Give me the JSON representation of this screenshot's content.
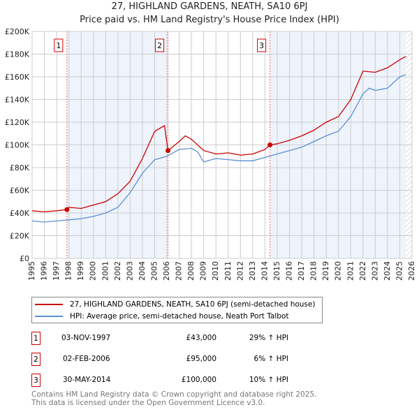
{
  "chart_data": {
    "type": "line",
    "title": "27, HIGHLAND GARDENS, NEATH, SA10 6PJ",
    "subtitle": "Price paid vs. HM Land Registry's House Price Index (HPI)",
    "xlim": [
      1995,
      2026
    ],
    "ylim": [
      0,
      200000
    ],
    "x_ticks": [
      "1995",
      "1996",
      "1997",
      "1998",
      "1999",
      "2000",
      "2001",
      "2002",
      "2003",
      "2004",
      "2005",
      "2006",
      "2007",
      "2008",
      "2009",
      "2010",
      "2011",
      "2012",
      "2013",
      "2014",
      "2015",
      "2016",
      "2017",
      "2018",
      "2019",
      "2020",
      "2021",
      "2022",
      "2023",
      "2024",
      "2025",
      "2026"
    ],
    "y_ticks": [
      {
        "v": 0,
        "l": "£0"
      },
      {
        "v": 20000,
        "l": "£20K"
      },
      {
        "v": 40000,
        "l": "£40K"
      },
      {
        "v": 60000,
        "l": "£60K"
      },
      {
        "v": 80000,
        "l": "£80K"
      },
      {
        "v": 100000,
        "l": "£100K"
      },
      {
        "v": 120000,
        "l": "£120K"
      },
      {
        "v": 140000,
        "l": "£140K"
      },
      {
        "v": 160000,
        "l": "£160K"
      },
      {
        "v": 180000,
        "l": "£180K"
      },
      {
        "v": 200000,
        "l": "£200K"
      }
    ],
    "grid": true,
    "series": [
      {
        "name": "27, HIGHLAND GARDENS, NEATH, SA10 6PJ (semi-detached house)",
        "color": "#cc0000",
        "x": [
          1995,
          1996,
          1997,
          1997.84,
          1998,
          1999,
          2000,
          2001,
          2002,
          2003,
          2004,
          2005,
          2005.8,
          2006.09,
          2007,
          2007.5,
          2008,
          2009,
          2010,
          2011,
          2012,
          2013,
          2014,
          2014.41,
          2015,
          2016,
          2017,
          2018,
          2019,
          2020,
          2021,
          2022,
          2023,
          2024,
          2025,
          2025.5
        ],
        "y": [
          42000,
          41000,
          42000,
          43000,
          45000,
          44000,
          47000,
          50000,
          57000,
          68000,
          88000,
          112000,
          117000,
          95000,
          103000,
          108000,
          105000,
          95000,
          92000,
          93000,
          91000,
          92000,
          96000,
          100000,
          101000,
          104000,
          108000,
          113000,
          120000,
          125000,
          140000,
          165000,
          164000,
          168000,
          175000,
          178000
        ]
      },
      {
        "name": "HPI: Average price, semi-detached house, Neath Port Talbot",
        "color": "#5b8fd4",
        "x": [
          1995,
          1996,
          1997,
          1998,
          1999,
          2000,
          2001,
          2002,
          2003,
          2004,
          2005,
          2006,
          2007,
          2008,
          2008.5,
          2009,
          2010,
          2011,
          2012,
          2013,
          2014,
          2015,
          2016,
          2017,
          2018,
          2019,
          2020,
          2021,
          2022,
          2022.5,
          2023,
          2024,
          2025,
          2025.5
        ],
        "y": [
          33000,
          32000,
          33000,
          34000,
          35000,
          37000,
          40000,
          45000,
          58000,
          75000,
          87000,
          90000,
          96000,
          97000,
          94000,
          85000,
          88000,
          87000,
          86000,
          86000,
          89000,
          92000,
          95000,
          98000,
          103000,
          108000,
          112000,
          125000,
          145000,
          150000,
          148000,
          150000,
          160000,
          162000
        ]
      }
    ],
    "sales": [
      {
        "n": "1",
        "x": 1997.84,
        "y": 43000,
        "date": "03-NOV-1997",
        "price": "£43,000",
        "hpi": "29% ↑ HPI"
      },
      {
        "n": "2",
        "x": 2006.09,
        "y": 95000,
        "date": "02-FEB-2006",
        "price": "£95,000",
        "hpi": "6% ↑ HPI"
      },
      {
        "n": "3",
        "x": 2014.41,
        "y": 100000,
        "date": "30-MAY-2014",
        "price": "£100,000",
        "hpi": "10% ↑ HPI"
      }
    ],
    "hatch_from": 2025.5
  },
  "footer": [
    "Contains HM Land Registry data © Crown copyright and database right 2025.",
    "This data is licensed under the Open Government Licence v3.0."
  ]
}
